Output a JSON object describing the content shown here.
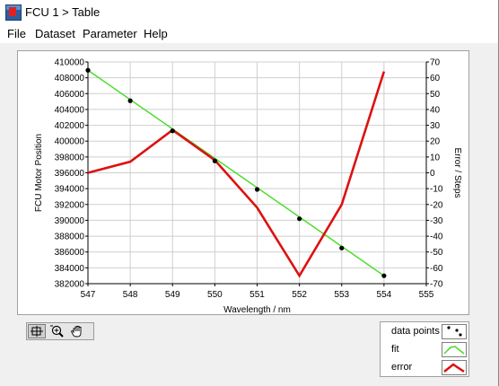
{
  "window": {
    "title": "FCU 1 > Table",
    "icon": "labview-app-icon"
  },
  "menu": {
    "items": [
      "File",
      "Dataset",
      "Parameter",
      "Help"
    ]
  },
  "toolbar": {
    "tools": [
      "crosshair-cursor-icon",
      "zoom-icon",
      "pan-hand-icon"
    ]
  },
  "legend": {
    "items": [
      {
        "label": "data points",
        "icon": "dots-icon"
      },
      {
        "label": "fit",
        "icon": "green-line-icon"
      },
      {
        "label": "error",
        "icon": "red-line-icon"
      }
    ]
  },
  "chart_data": {
    "type": "line",
    "xlabel": "Wavelength / nm",
    "ylabel": "FCU Motor Position",
    "y2label": "Error / Steps",
    "xlim": [
      547,
      555
    ],
    "ylim": [
      382000,
      410000
    ],
    "y2lim": [
      -70,
      70
    ],
    "x_ticks": [
      547,
      548,
      549,
      550,
      551,
      552,
      553,
      554,
      555
    ],
    "y_ticks": [
      382000,
      384000,
      386000,
      388000,
      390000,
      392000,
      394000,
      396000,
      398000,
      400000,
      402000,
      404000,
      406000,
      408000,
      410000
    ],
    "y2_ticks": [
      -70,
      -60,
      -50,
      -40,
      -30,
      -20,
      -10,
      0,
      10,
      20,
      30,
      40,
      50,
      60,
      70
    ],
    "grid": true,
    "series": [
      {
        "name": "data points",
        "axis": "left",
        "style": "points",
        "color": "#000000",
        "x": [
          547,
          548,
          549,
          550,
          551,
          552,
          553,
          554
        ],
        "y": [
          408950,
          405100,
          401300,
          397500,
          393900,
          390200,
          386500,
          383000
        ]
      },
      {
        "name": "fit",
        "axis": "left",
        "style": "line",
        "color": "#44dd22",
        "x": [
          547,
          554
        ],
        "y": [
          408950,
          383000
        ]
      },
      {
        "name": "error",
        "axis": "right",
        "style": "line",
        "color": "#dd1111",
        "x": [
          547,
          548,
          549,
          550,
          551,
          552,
          553,
          554
        ],
        "y": [
          0,
          7,
          27,
          8,
          -22,
          -65,
          -20,
          64
        ]
      }
    ]
  }
}
